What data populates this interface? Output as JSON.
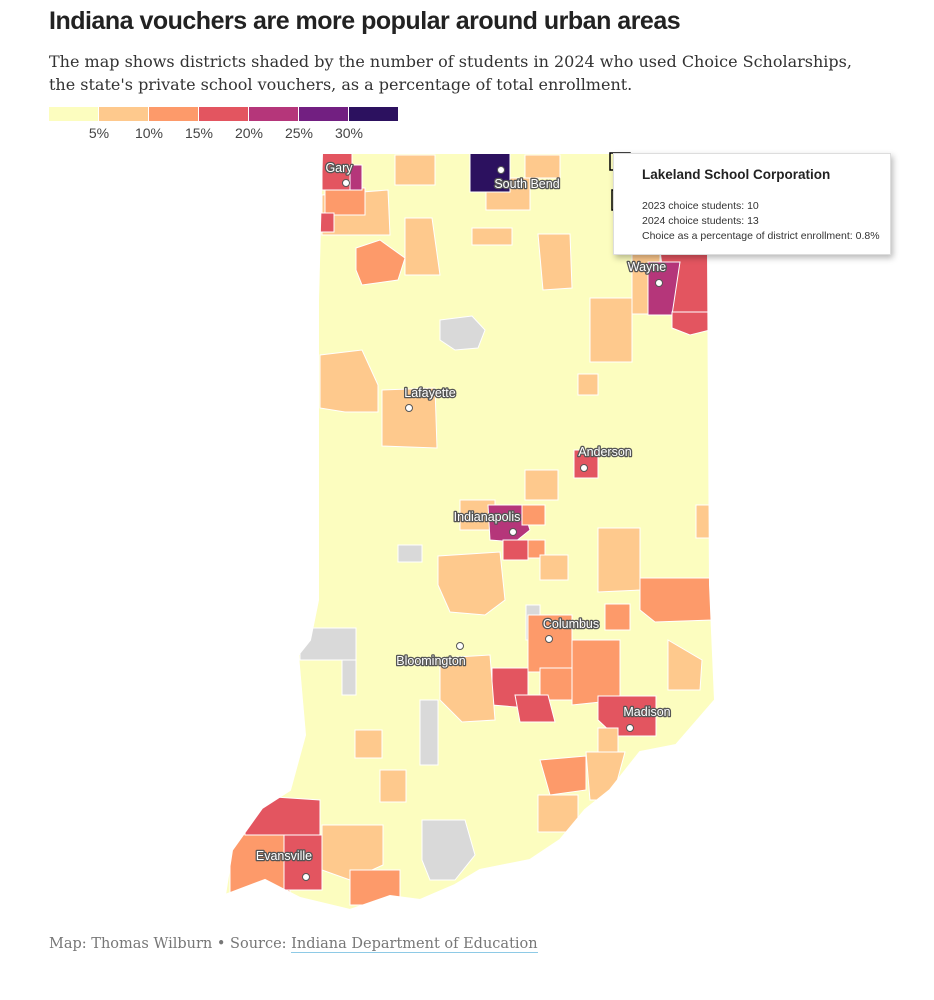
{
  "header": {
    "title": "Indiana vouchers are more popular around urban areas",
    "subtitle": "The map shows districts shaded by the number of students in 2024 who used Choice Scholarships, the state's private school vouchers, as a percentage of total enrollment."
  },
  "legend": {
    "colors": [
      "#fcfdbf",
      "#fec98d",
      "#fd9a6a",
      "#e35560",
      "#b5367a",
      "#721f81",
      "#2c115f"
    ],
    "labels": [
      "5%",
      "10%",
      "15%",
      "20%",
      "25%",
      "30%"
    ]
  },
  "colors": {
    "no_data": "#d9d9d9",
    "base": "#fcfdbf",
    "highlight_outline": "#000000"
  },
  "cities": [
    {
      "name": "Gary"
    },
    {
      "name": "South Bend"
    },
    {
      "name": "Wayne"
    },
    {
      "name": "Lafayette"
    },
    {
      "name": "Anderson"
    },
    {
      "name": "Indianapolis"
    },
    {
      "name": "Columbus"
    },
    {
      "name": "Bloomington"
    },
    {
      "name": "Madison"
    },
    {
      "name": "Evansville"
    }
  ],
  "tooltip": {
    "title": "Lakeland School Corporation",
    "line1": "2023 choice students: 10",
    "line2": "2024 choice students: 13",
    "line3": "Choice as a percentage of district enrollment: 0.8%"
  },
  "footer": {
    "credit_prefix": "Map: Thomas Wilburn • Source: ",
    "source_link": "Indiana Department of Education"
  }
}
